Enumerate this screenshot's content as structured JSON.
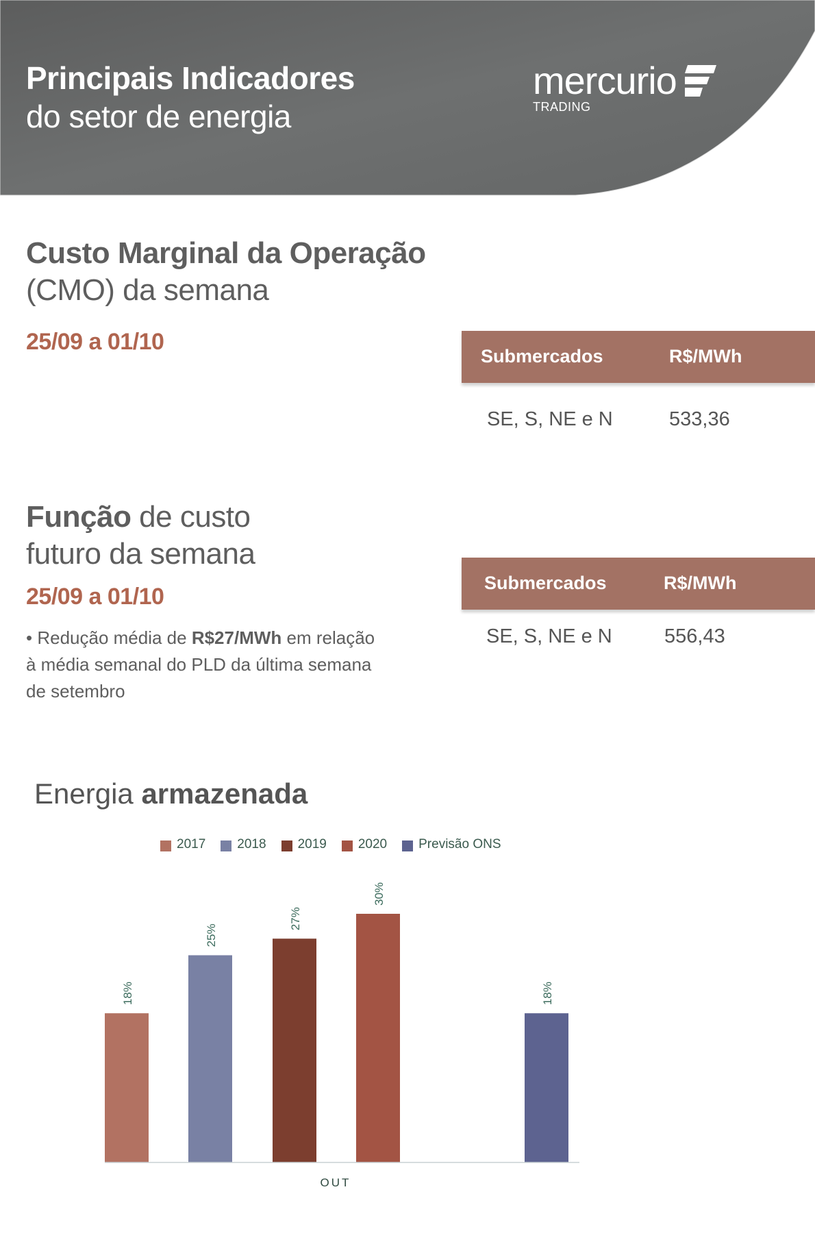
{
  "header": {
    "title_line1": "Principais Indicadores",
    "title_line2": "do setor de energia",
    "logo_word": "mercurio",
    "logo_sub": "TRADING"
  },
  "cmo": {
    "title_line1": "Custo Marginal da Operação",
    "title_line2": "(CMO) da semana",
    "date": "25/09 a 01/10",
    "table": {
      "col1": "Submercados",
      "col2": "R$/MWh",
      "rows": [
        {
          "submercado": "SE, S, NE e N",
          "valor": "533,36"
        }
      ]
    }
  },
  "fcf": {
    "title_bold": "Função",
    "title_rest": " de custo",
    "title_line2": "futuro da semana",
    "date": "25/09 a 01/10",
    "note_prefix": "• Redução média de ",
    "note_bold": "R$27/MWh",
    "note_suffix": " em relação à média semanal do PLD da última semana de setembro",
    "table": {
      "col1": "Submercados",
      "col2": "R$/MWh",
      "rows": [
        {
          "submercado": "SE, S, NE e N",
          "valor": "556,43"
        }
      ]
    }
  },
  "energy": {
    "title_normal": "Energia ",
    "title_bold": "armazenada"
  },
  "colors": {
    "accent": "#b0654f",
    "table_header": "#a37264",
    "header_bg": "#646666"
  },
  "chart_data": {
    "type": "bar",
    "title": "Energia armazenada",
    "categories": [
      "OUT"
    ],
    "series": [
      {
        "name": "2017",
        "values": [
          18
        ],
        "label": "18%",
        "color": "#b27262"
      },
      {
        "name": "2018",
        "values": [
          25
        ],
        "label": "25%",
        "color": "#7981a4"
      },
      {
        "name": "2019",
        "values": [
          27
        ],
        "label": "27%",
        "color": "#7c3e2f"
      },
      {
        "name": "2020",
        "values": [
          30
        ],
        "label": "30%",
        "color": "#a35444"
      },
      {
        "name": "Previsão ONS",
        "values": [
          18
        ],
        "label": "18%",
        "color": "#5d6390"
      }
    ],
    "xlabel": "",
    "ylabel": "",
    "legend": "top",
    "grid": false
  }
}
